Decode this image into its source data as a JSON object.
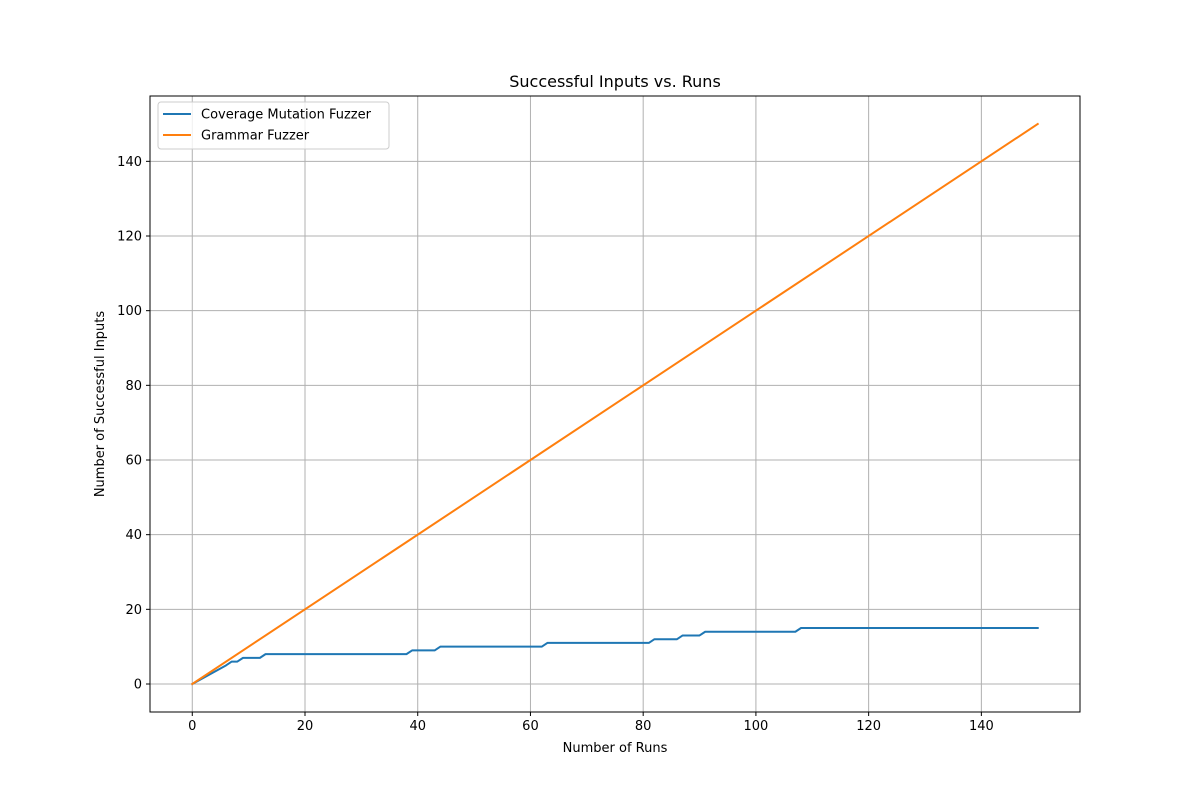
{
  "chart_data": {
    "type": "line",
    "title": "Successful Inputs vs. Runs",
    "xlabel": "Number of Runs",
    "ylabel": "Number of Successful Inputs",
    "xlim": [
      -7.5,
      157.5
    ],
    "ylim": [
      -7.5,
      157.5
    ],
    "xticks": [
      0,
      20,
      40,
      60,
      80,
      100,
      120,
      140
    ],
    "yticks": [
      0,
      20,
      40,
      60,
      80,
      100,
      120,
      140
    ],
    "grid": true,
    "legend_position": "upper-left",
    "series": [
      {
        "name": "Coverage Mutation Fuzzer",
        "color": "#1f77b4",
        "x": [
          0,
          6,
          7,
          8,
          9,
          12,
          13,
          38,
          39,
          43,
          44,
          62,
          63,
          81,
          82,
          86,
          87,
          90,
          91,
          107,
          108,
          150
        ],
        "y": [
          0,
          5,
          6,
          6,
          7,
          7,
          8,
          8,
          9,
          9,
          10,
          10,
          11,
          11,
          12,
          12,
          13,
          13,
          14,
          14,
          15,
          15
        ]
      },
      {
        "name": "Grammar Fuzzer",
        "color": "#ff7f0e",
        "x": [
          0,
          150
        ],
        "y": [
          0,
          150
        ]
      }
    ]
  }
}
